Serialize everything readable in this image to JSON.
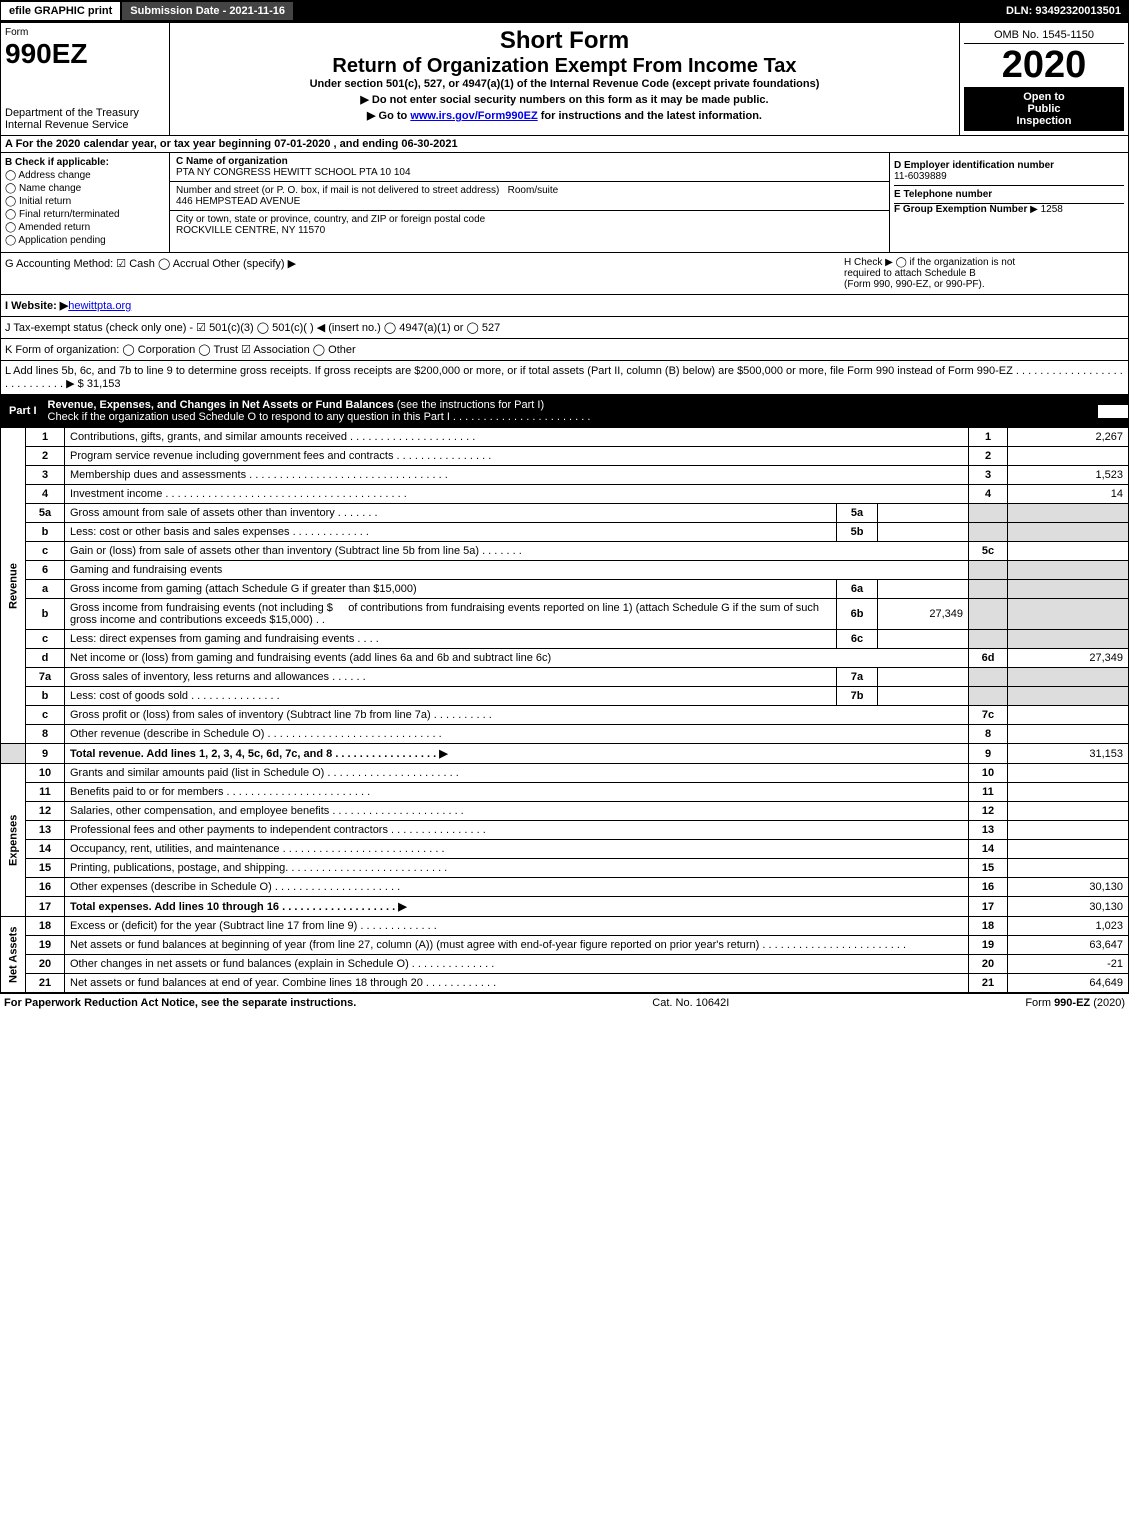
{
  "header": {
    "efile": "efile GRAPHIC print",
    "submission": "Submission Date - 2021-11-16",
    "dln": "DLN: 93492320013501"
  },
  "top": {
    "form_label": "Form",
    "form_number": "990EZ",
    "dept1": "Department of the Treasury",
    "dept2": "Internal Revenue Service",
    "short_form": "Short Form",
    "return_title": "Return of Organization Exempt From Income Tax",
    "under": "Under section 501(c), 527, or 4947(a)(1) of the Internal Revenue Code (except private foundations)",
    "no_ssn": "▶ Do not enter social security numbers on this form as it may be made public.",
    "goto": "▶ Go to www.irs.gov/Form990EZ for instructions and the latest information.",
    "omb": "OMB No. 1545-1150",
    "year": "2020",
    "open1": "Open to",
    "open2": "Public",
    "open3": "Inspection"
  },
  "section_a": "A For the 2020 calendar year, or tax year beginning 07-01-2020 , and ending 06-30-2021",
  "section_b": {
    "title": "B Check if applicable:",
    "items": [
      "Address change",
      "Name change",
      "Initial return",
      "Final return/terminated",
      "Amended return",
      "Application pending"
    ]
  },
  "section_c": {
    "label": "C Name of organization",
    "name": "PTA NY CONGRESS HEWITT SCHOOL PTA 10 104",
    "addr_label": "Number and street (or P. O. box, if mail is not delivered to street address)",
    "room_label": "Room/suite",
    "addr": "446 HEMPSTEAD AVENUE",
    "city_label": "City or town, state or province, country, and ZIP or foreign postal code",
    "city": "ROCKVILLE CENTRE, NY  11570"
  },
  "section_d": {
    "label": "D Employer identification number",
    "value": "11-6039889"
  },
  "section_e": {
    "label": "E Telephone number",
    "value": ""
  },
  "section_f": {
    "label": "F Group Exemption Number",
    "value": "▶ 1258"
  },
  "section_g": "G Accounting Method: ☑ Cash  ◯ Accrual  Other (specify) ▶",
  "section_h": {
    "line1": "H  Check ▶  ◯  if the organization is not",
    "line2": "required to attach Schedule B",
    "line3": "(Form 990, 990-EZ, or 990-PF)."
  },
  "section_i": {
    "label": "I Website: ▶",
    "value": "hewittpta.org"
  },
  "section_j": "J Tax-exempt status (check only one) - ☑ 501(c)(3) ◯ 501(c)(  ) ◀ (insert no.) ◯ 4947(a)(1) or ◯ 527",
  "section_k": "K Form of organization:  ◯ Corporation  ◯ Trust  ☑ Association  ◯ Other",
  "section_l": {
    "text": "L Add lines 5b, 6c, and 7b to line 9 to determine gross receipts. If gross receipts are $200,000 or more, or if total assets (Part II, column (B) below) are $500,000 or more, file Form 990 instead of Form 990-EZ . . . . . . . . . . . . . . . . . . . . . . . . . . . . ▶ $",
    "value": "31,153"
  },
  "part1": {
    "label": "Part I",
    "title": "Revenue, Expenses, and Changes in Net Assets or Fund Balances",
    "sub": " (see the instructions for Part I)",
    "check": "Check if the organization used Schedule O to respond to any question in this Part I . . . . . . . . . . . . . . . . . . . . . . .",
    "checked": "☑"
  },
  "sides": {
    "revenue": "Revenue",
    "expenses": "Expenses",
    "netassets": "Net Assets"
  },
  "lines": {
    "l1": {
      "desc": "Contributions, gifts, grants, and similar amounts received . . . . . . . . . . . . . . . . . . . . .",
      "num": "1",
      "val": "2,267"
    },
    "l2": {
      "desc": "Program service revenue including government fees and contracts . . . . . . . . . . . . . . . .",
      "num": "2",
      "val": ""
    },
    "l3": {
      "desc": "Membership dues and assessments . . . . . . . . . . . . . . . . . . . . . . . . . . . . . . . . .",
      "num": "3",
      "val": "1,523"
    },
    "l4": {
      "desc": "Investment income . . . . . . . . . . . . . . . . . . . . . . . . . . . . . . . . . . . . . . . .",
      "num": "4",
      "val": "14"
    },
    "l5a": {
      "desc": "Gross amount from sale of assets other than inventory . . . . . . .",
      "sub": "5a",
      "subval": ""
    },
    "l5b": {
      "desc": "Less: cost or other basis and sales expenses . . . . . . . . . . . . .",
      "sub": "5b",
      "subval": ""
    },
    "l5c": {
      "desc": "Gain or (loss) from sale of assets other than inventory (Subtract line 5b from line 5a) . . . . . . .",
      "num": "5c",
      "val": ""
    },
    "l6": {
      "desc": "Gaming and fundraising events"
    },
    "l6a": {
      "desc": "Gross income from gaming (attach Schedule G if greater than $15,000)",
      "sub": "6a",
      "subval": ""
    },
    "l6b": {
      "desc1": "Gross income from fundraising events (not including $",
      "desc2": "of contributions from fundraising events reported on line 1) (attach Schedule G if the sum of such gross income and contributions exceeds $15,000)   .  .",
      "sub": "6b",
      "subval": "27,349"
    },
    "l6c": {
      "desc": "Less: direct expenses from gaming and fundraising events   .  .  .  .",
      "sub": "6c",
      "subval": ""
    },
    "l6d": {
      "desc": "Net income or (loss) from gaming and fundraising events (add lines 6a and 6b and subtract line 6c)",
      "num": "6d",
      "val": "27,349"
    },
    "l7a": {
      "desc": "Gross sales of inventory, less returns and allowances . . . . . .",
      "sub": "7a",
      "subval": ""
    },
    "l7b": {
      "desc": "Less: cost of goods sold        .  .  .  .  .  .  .  .  .  .  .  .  .  .  .",
      "sub": "7b",
      "subval": ""
    },
    "l7c": {
      "desc": "Gross profit or (loss) from sales of inventory (Subtract line 7b from line 7a) . . . . . . . . . .",
      "num": "7c",
      "val": ""
    },
    "l8": {
      "desc": "Other revenue (describe in Schedule O) . . . . . . . . . . . . . . . . . . . . . . . . . . . . .",
      "num": "8",
      "val": ""
    },
    "l9": {
      "desc": "Total revenue. Add lines 1, 2, 3, 4, 5c, 6d, 7c, and 8  .  .  .  .  .  .  .  .  .  .  .  .  .  .  .  .  .  ▶",
      "num": "9",
      "val": "31,153"
    },
    "l10": {
      "desc": "Grants and similar amounts paid (list in Schedule O) . . . . . . . . . . . . . . . . . . . . . .",
      "num": "10",
      "val": ""
    },
    "l11": {
      "desc": "Benefits paid to or for members     .  .  .  .  .  .  .  .  .  .  .  .  .  .  .  .  .  .  .  .  .  .  .  .",
      "num": "11",
      "val": ""
    },
    "l12": {
      "desc": "Salaries, other compensation, and employee benefits . . . . . . . . . . . . . . . . . . . . . .",
      "num": "12",
      "val": ""
    },
    "l13": {
      "desc": "Professional fees and other payments to independent contractors . . . . . . . . . . . . . . . .",
      "num": "13",
      "val": ""
    },
    "l14": {
      "desc": "Occupancy, rent, utilities, and maintenance . . . . . . . . . . . . . . . . . . . . . . . . . . .",
      "num": "14",
      "val": ""
    },
    "l15": {
      "desc": "Printing, publications, postage, and shipping. . . . . . . . . . . . . . . . . . . . . . . . . . .",
      "num": "15",
      "val": ""
    },
    "l16": {
      "desc": "Other expenses (describe in Schedule O)    .  .  .  .  .  .  .  .  .  .  .  .  .  .  .  .  .  .  .  .  .",
      "num": "16",
      "val": "30,130"
    },
    "l17": {
      "desc": "Total expenses. Add lines 10 through 16     .  .  .  .  .  .  .  .  .  .  .  .  .  .  .  .  .  .  .  ▶",
      "num": "17",
      "val": "30,130"
    },
    "l18": {
      "desc": "Excess or (deficit) for the year (Subtract line 17 from line 9)       .  .  .  .  .  .  .  .  .  .  .  .  .",
      "num": "18",
      "val": "1,023"
    },
    "l19": {
      "desc": "Net assets or fund balances at beginning of year (from line 27, column (A)) (must agree with end-of-year figure reported on prior year's return) . . . . . . . . . . . . . . . . . . . . . . . .",
      "num": "19",
      "val": "63,647"
    },
    "l20": {
      "desc": "Other changes in net assets or fund balances (explain in Schedule O) . . . . . . . . . . . . . .",
      "num": "20",
      "val": "-21"
    },
    "l21": {
      "desc": "Net assets or fund balances at end of year. Combine lines 18 through 20 . . . . . . . . . . . .",
      "num": "21",
      "val": "64,649"
    }
  },
  "footer": {
    "left": "For Paperwork Reduction Act Notice, see the separate instructions.",
    "mid": "Cat. No. 10642I",
    "right": "Form 990-EZ (2020)"
  }
}
